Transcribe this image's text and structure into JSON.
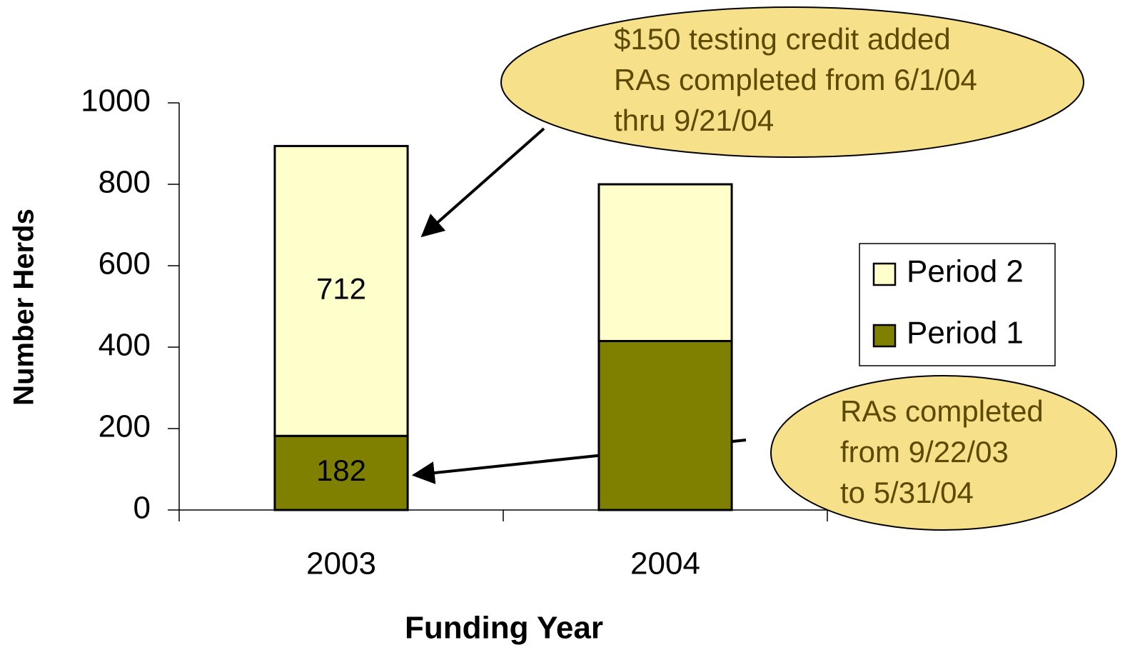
{
  "chart_data": {
    "type": "stacked_bar",
    "x_label": "Funding Year",
    "y_label": "Number Herds",
    "categories": [
      "2003",
      "2004"
    ],
    "series": [
      {
        "name": "Period 1",
        "color": "#808000",
        "values": [
          182,
          415
        ],
        "value_labels": [
          "182",
          null
        ]
      },
      {
        "name": "Period 2",
        "color": "#ffffcc",
        "values": [
          712,
          385
        ],
        "value_labels": [
          "712",
          null
        ]
      }
    ],
    "ylim": [
      0,
      1000
    ],
    "yticks": [
      0,
      200,
      400,
      600,
      800,
      1000
    ],
    "legend": "right",
    "annotations": [
      {
        "lines": [
          "$150 testing credit added",
          "RAs completed from 6/1/04",
          "thru 9/21/04"
        ]
      },
      {
        "lines": [
          "RAs completed",
          "from 9/22/03",
          "to  5/31/04"
        ]
      }
    ]
  }
}
